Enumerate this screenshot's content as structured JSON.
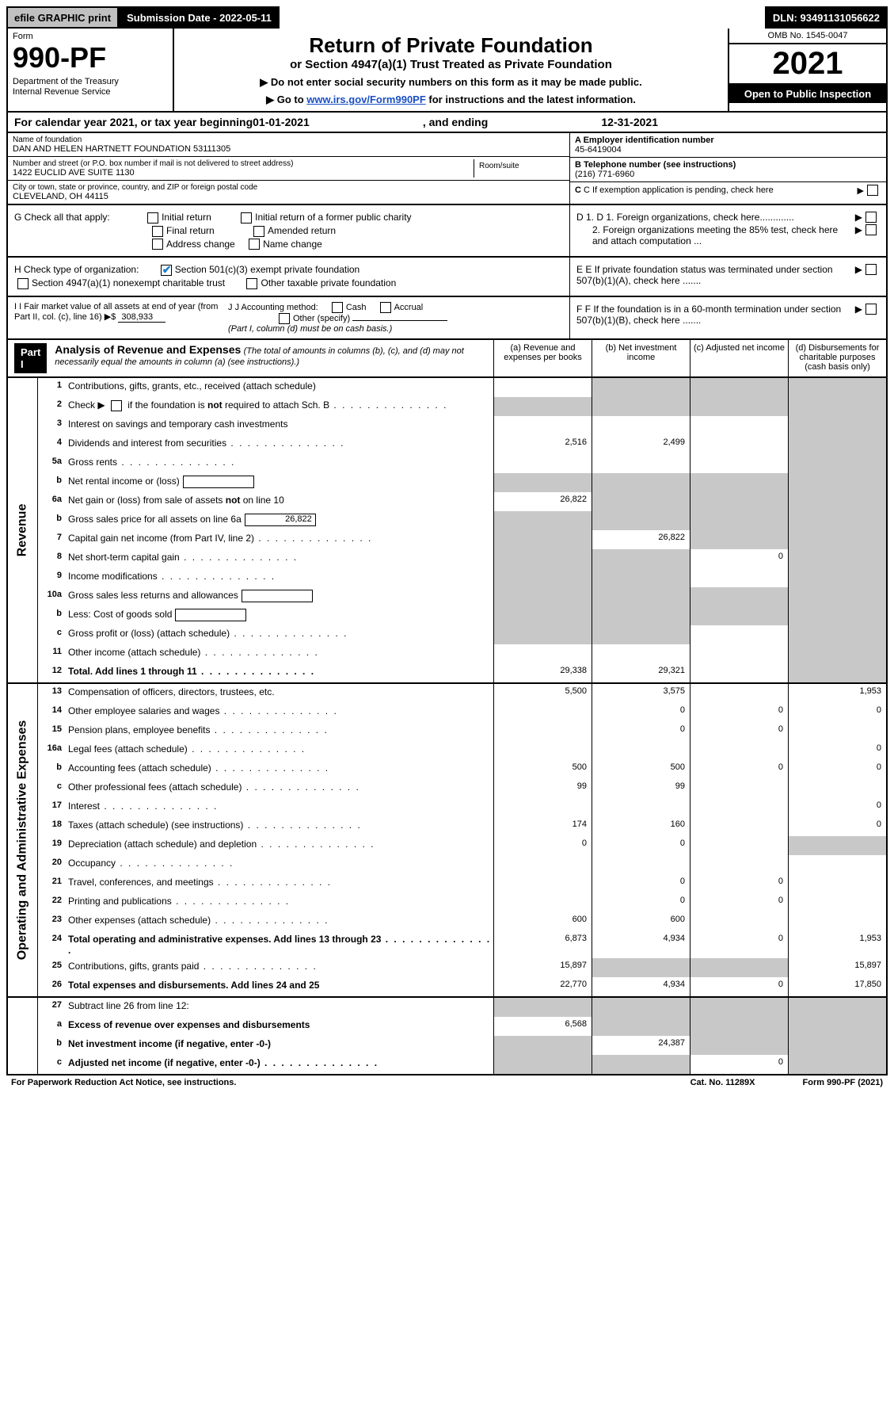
{
  "top_strip": {
    "efile": "efile GRAPHIC print",
    "submission": "Submission Date - 2022-05-11",
    "dln": "DLN: 93491131056622"
  },
  "header": {
    "form_label": "Form",
    "form_number": "990-PF",
    "dept1": "Department of the Treasury",
    "dept2": "Internal Revenue Service",
    "title": "Return of Private Foundation",
    "subtitle": "or Section 4947(a)(1) Trust Treated as Private Foundation",
    "arrow1": "▶ Do not enter social security numbers on this form as it may be made public.",
    "arrow2_pre": "▶ Go to ",
    "arrow2_link": "www.irs.gov/Form990PF",
    "arrow2_post": " for instructions and the latest information.",
    "omb": "OMB No. 1545-0047",
    "year": "2021",
    "inspection": "Open to Public Inspection"
  },
  "cal_year": {
    "pre": "For calendar year 2021, or tax year beginning ",
    "begin": "01-01-2021",
    "mid": " , and ending ",
    "end": "12-31-2021"
  },
  "name_block": {
    "name_lbl": "Name of foundation",
    "name": "DAN AND HELEN HARTNETT FOUNDATION 53111305",
    "addr_lbl": "Number and street (or P.O. box number if mail is not delivered to street address)",
    "addr": "1422 EUCLID AVE SUITE 1130",
    "room_lbl": "Room/suite",
    "city_lbl": "City or town, state or province, country, and ZIP or foreign postal code",
    "city": "CLEVELAND, OH  44115",
    "a_lbl": "A Employer identification number",
    "a_val": "45-6419004",
    "b_lbl": "B Telephone number (see instructions)",
    "b_val": "(216) 771-6960",
    "c_lbl": "C If exemption application is pending, check here"
  },
  "g_row": {
    "label": "G Check all that apply:",
    "initial": "Initial return",
    "initial_former": "Initial return of a former public charity",
    "final": "Final return",
    "amended": "Amended return",
    "addr_change": "Address change",
    "name_change": "Name change"
  },
  "d_row": {
    "d1": "D 1. Foreign organizations, check here.............",
    "d2": "2. Foreign organizations meeting the 85% test, check here and attach computation ..."
  },
  "h_row": {
    "label": "H Check type of organization:",
    "s501": "Section 501(c)(3) exempt private foundation",
    "s4947": "Section 4947(a)(1) nonexempt charitable trust",
    "other_tax": "Other taxable private foundation"
  },
  "e_row": "E  If private foundation status was terminated under section 507(b)(1)(A), check here .......",
  "i_row": {
    "label": "I Fair market value of all assets at end of year (from Part II, col. (c), line 16)",
    "arrow": "▶$",
    "val": "308,933"
  },
  "j_row": {
    "label": "J Accounting method:",
    "cash": "Cash",
    "accrual": "Accrual",
    "other": "Other (specify)",
    "note": "(Part I, column (d) must be on cash basis.)"
  },
  "f_row": "F  If the foundation is in a 60-month termination under section 507(b)(1)(B), check here .......",
  "part1": {
    "label": "Part I",
    "title": "Analysis of Revenue and Expenses",
    "title_note": " (The total of amounts in columns (b), (c), and (d) may not necessarily equal the amounts in column (a) (see instructions).)",
    "col_a": "(a)  Revenue and expenses per books",
    "col_b": "(b)  Net investment income",
    "col_c": "(c)  Adjusted net income",
    "col_d": "(d)  Disbursements for charitable purposes (cash basis only)"
  },
  "rail_revenue": "Revenue",
  "rail_expenses": "Operating and Administrative Expenses",
  "rows": [
    {
      "n": "1",
      "d": "Contributions, gifts, grants, etc., received (attach schedule)",
      "a": "",
      "b": "g",
      "c": "g",
      "dd": "g"
    },
    {
      "n": "2",
      "d": "Check ▶ ☐ if the foundation is not required to attach Sch. B",
      "a": "g",
      "b": "g",
      "c": "g",
      "dd": "g",
      "dots": true
    },
    {
      "n": "3",
      "d": "Interest on savings and temporary cash investments",
      "a": "",
      "b": "",
      "c": "",
      "dd": "g"
    },
    {
      "n": "4",
      "d": "Dividends and interest from securities",
      "a": "2,516",
      "b": "2,499",
      "c": "",
      "dd": "g",
      "dots": true
    },
    {
      "n": "5a",
      "d": "Gross rents",
      "a": "",
      "b": "",
      "c": "",
      "dd": "g",
      "dots": true
    },
    {
      "n": "b",
      "d": "Net rental income or (loss)",
      "a": "g",
      "b": "g",
      "c": "g",
      "dd": "g",
      "box": ""
    },
    {
      "n": "6a",
      "d": "Net gain or (loss) from sale of assets not on line 10",
      "a": "26,822",
      "b": "g",
      "c": "g",
      "dd": "g"
    },
    {
      "n": "b",
      "d": "Gross sales price for all assets on line 6a",
      "a": "g",
      "b": "g",
      "c": "g",
      "dd": "g",
      "box": "26,822"
    },
    {
      "n": "7",
      "d": "Capital gain net income (from Part IV, line 2)",
      "a": "g",
      "b": "26,822",
      "c": "g",
      "dd": "g",
      "dots": true
    },
    {
      "n": "8",
      "d": "Net short-term capital gain",
      "a": "g",
      "b": "g",
      "c": "0",
      "dd": "g",
      "dots": true
    },
    {
      "n": "9",
      "d": "Income modifications",
      "a": "g",
      "b": "g",
      "c": "",
      "dd": "g",
      "dots": true
    },
    {
      "n": "10a",
      "d": "Gross sales less returns and allowances",
      "a": "g",
      "b": "g",
      "c": "g",
      "dd": "g",
      "box": ""
    },
    {
      "n": "b",
      "d": "Less: Cost of goods sold",
      "a": "g",
      "b": "g",
      "c": "g",
      "dd": "g",
      "box": "",
      "dots": true
    },
    {
      "n": "c",
      "d": "Gross profit or (loss) (attach schedule)",
      "a": "g",
      "b": "g",
      "c": "",
      "dd": "g",
      "dots": true
    },
    {
      "n": "11",
      "d": "Other income (attach schedule)",
      "a": "",
      "b": "",
      "c": "",
      "dd": "g",
      "dots": true
    },
    {
      "n": "12",
      "d": "Total. Add lines 1 through 11",
      "a": "29,338",
      "b": "29,321",
      "c": "",
      "dd": "g",
      "bold": true,
      "dots": true
    }
  ],
  "rows2": [
    {
      "n": "13",
      "d": "Compensation of officers, directors, trustees, etc.",
      "a": "5,500",
      "b": "3,575",
      "c": "",
      "dd": "1,953"
    },
    {
      "n": "14",
      "d": "Other employee salaries and wages",
      "a": "",
      "b": "0",
      "c": "0",
      "dd": "0",
      "dots": true
    },
    {
      "n": "15",
      "d": "Pension plans, employee benefits",
      "a": "",
      "b": "0",
      "c": "0",
      "dd": "",
      "dots": true
    },
    {
      "n": "16a",
      "d": "Legal fees (attach schedule)",
      "a": "",
      "b": "",
      "c": "",
      "dd": "0",
      "dots": true
    },
    {
      "n": "b",
      "d": "Accounting fees (attach schedule)",
      "a": "500",
      "b": "500",
      "c": "0",
      "dd": "0",
      "dots": true
    },
    {
      "n": "c",
      "d": "Other professional fees (attach schedule)",
      "a": "99",
      "b": "99",
      "c": "",
      "dd": "",
      "dots": true
    },
    {
      "n": "17",
      "d": "Interest",
      "a": "",
      "b": "",
      "c": "",
      "dd": "0",
      "dots": true
    },
    {
      "n": "18",
      "d": "Taxes (attach schedule) (see instructions)",
      "a": "174",
      "b": "160",
      "c": "",
      "dd": "0",
      "dots": true
    },
    {
      "n": "19",
      "d": "Depreciation (attach schedule) and depletion",
      "a": "0",
      "b": "0",
      "c": "",
      "dd": "g",
      "dots": true
    },
    {
      "n": "20",
      "d": "Occupancy",
      "a": "",
      "b": "",
      "c": "",
      "dd": "",
      "dots": true
    },
    {
      "n": "21",
      "d": "Travel, conferences, and meetings",
      "a": "",
      "b": "0",
      "c": "0",
      "dd": "",
      "dots": true
    },
    {
      "n": "22",
      "d": "Printing and publications",
      "a": "",
      "b": "0",
      "c": "0",
      "dd": "",
      "dots": true
    },
    {
      "n": "23",
      "d": "Other expenses (attach schedule)",
      "a": "600",
      "b": "600",
      "c": "",
      "dd": "",
      "dots": true
    },
    {
      "n": "24",
      "d": "Total operating and administrative expenses. Add lines 13 through 23",
      "a": "6,873",
      "b": "4,934",
      "c": "0",
      "dd": "1,953",
      "bold": true,
      "dots": true
    },
    {
      "n": "25",
      "d": "Contributions, gifts, grants paid",
      "a": "15,897",
      "b": "g",
      "c": "g",
      "dd": "15,897",
      "dots": true
    },
    {
      "n": "26",
      "d": "Total expenses and disbursements. Add lines 24 and 25",
      "a": "22,770",
      "b": "4,934",
      "c": "0",
      "dd": "17,850",
      "bold": true
    }
  ],
  "rows3": [
    {
      "n": "27",
      "d": "Subtract line 26 from line 12:",
      "a": "g",
      "b": "g",
      "c": "g",
      "dd": "g"
    },
    {
      "n": "a",
      "d": "Excess of revenue over expenses and disbursements",
      "a": "6,568",
      "b": "g",
      "c": "g",
      "dd": "g",
      "bold": true
    },
    {
      "n": "b",
      "d": "Net investment income (if negative, enter -0-)",
      "a": "g",
      "b": "24,387",
      "c": "g",
      "dd": "g",
      "bold": true
    },
    {
      "n": "c",
      "d": "Adjusted net income (if negative, enter -0-)",
      "a": "g",
      "b": "g",
      "c": "0",
      "dd": "g",
      "bold": true,
      "dots": true
    }
  ],
  "footer": {
    "paperwork": "For Paperwork Reduction Act Notice, see instructions.",
    "cat": "Cat. No. 11289X",
    "form": "Form 990-PF (2021)"
  },
  "colors": {
    "gray_cell": "#c8c8c8",
    "efile_bg": "#c0c0c0",
    "black": "#000000",
    "check_blue": "#1a7dcc",
    "link_blue": "#1a4fc4"
  }
}
